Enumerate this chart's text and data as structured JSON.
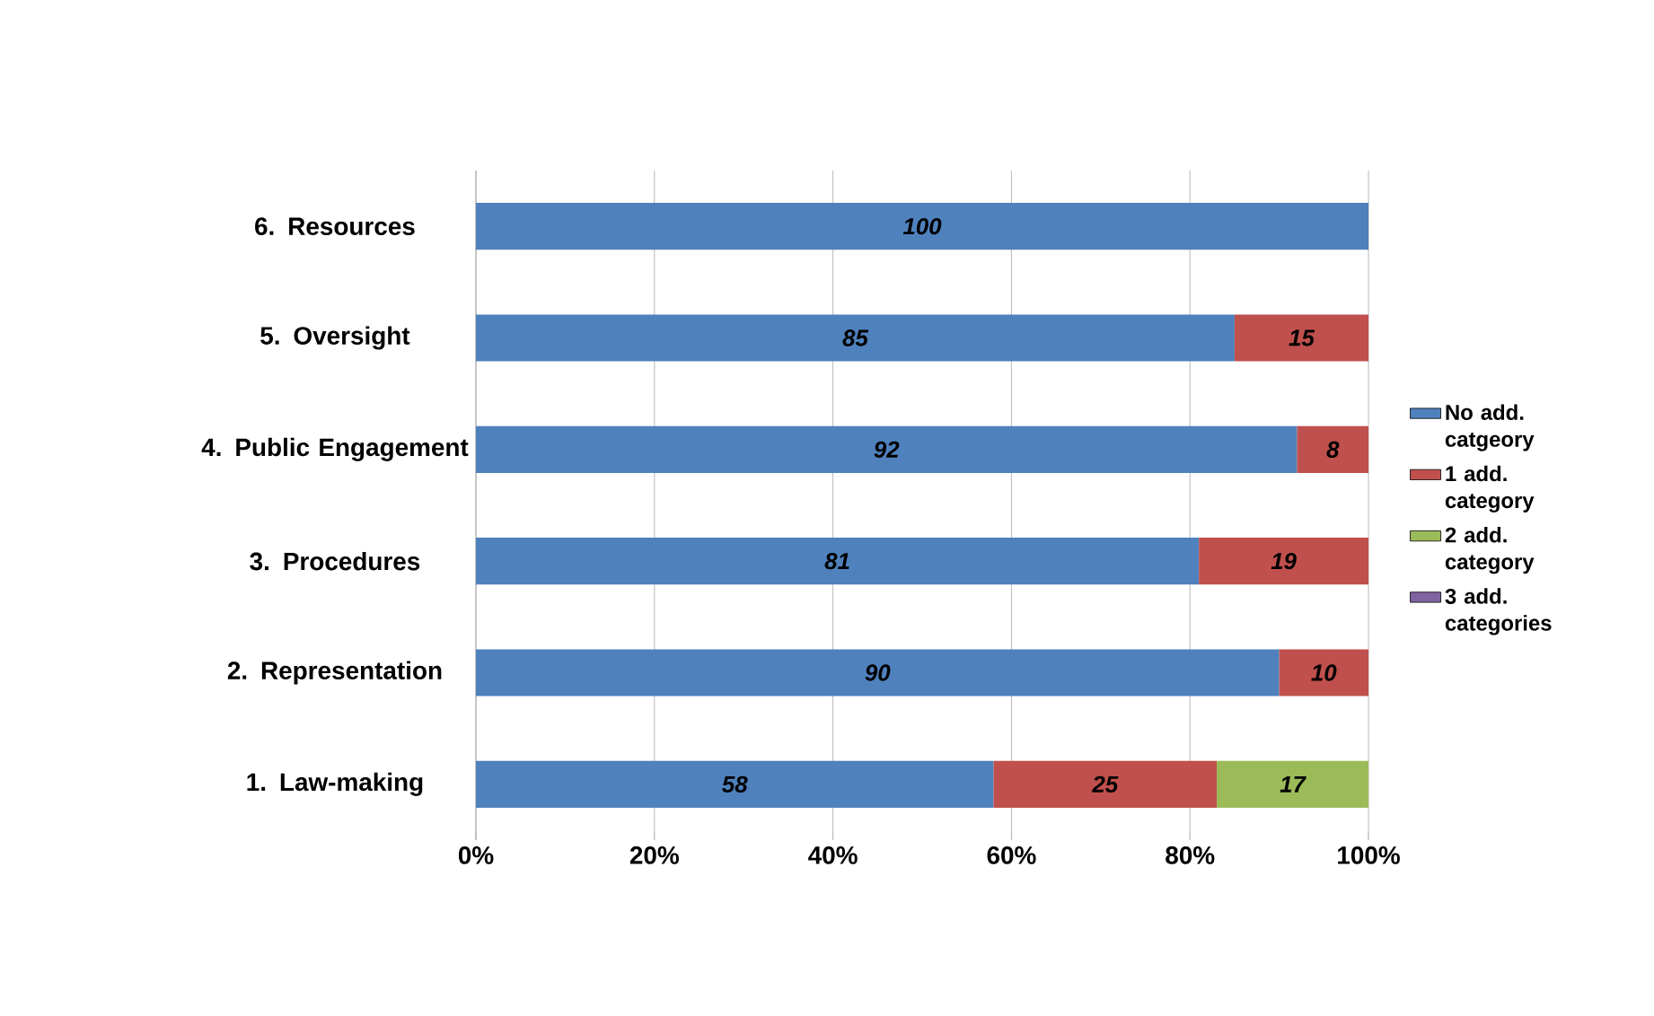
{
  "chart_data": {
    "type": "bar",
    "orientation": "horizontal",
    "stacked": true,
    "data_labels": true,
    "grid": "x",
    "legend": "right",
    "categories": [
      "6. Resources",
      "5. Oversight",
      "4. Public Engagement",
      "3. Procedures",
      "2. Representation",
      "1. Law-making"
    ],
    "series": [
      {
        "name": "No add. catgeory",
        "color": "#4f81bd",
        "values": [
          100,
          85,
          92,
          81,
          90,
          58
        ]
      },
      {
        "name": "1 add. category",
        "color": "#c0504d",
        "values": [
          null,
          15,
          8,
          19,
          10,
          25
        ]
      },
      {
        "name": "2 add. category",
        "color": "#9bbb59",
        "values": [
          null,
          null,
          null,
          null,
          null,
          17
        ]
      },
      {
        "name": "3 add. categories",
        "color": "#8064a2",
        "values": [
          null,
          null,
          null,
          null,
          null,
          null
        ]
      }
    ],
    "xlim": [
      0,
      100
    ],
    "xticks": [
      {
        "value": 0,
        "label": "0%"
      },
      {
        "value": 20,
        "label": "20%"
      },
      {
        "value": 40,
        "label": "40%"
      },
      {
        "value": 60,
        "label": "60%"
      },
      {
        "value": 80,
        "label": "80%"
      },
      {
        "value": 100,
        "label": "100%"
      }
    ]
  }
}
